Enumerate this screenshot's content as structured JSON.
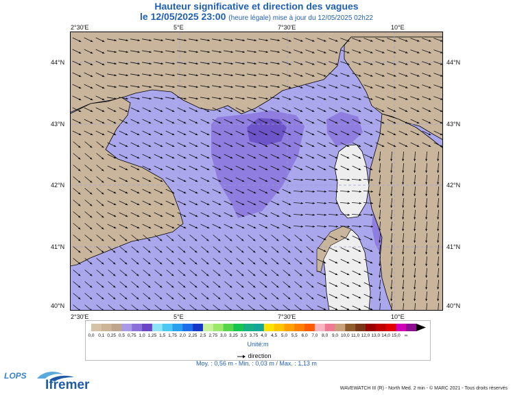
{
  "title": {
    "line1": "Hauteur significative et direction des vagues",
    "line2_main": "le 12/05/2025 23:00",
    "line2_small": "(heure légale) mise à jour du 12/05/2025 02h22"
  },
  "map": {
    "lon_labels": [
      "2°30'E",
      "5°E",
      "7°30'E",
      "10°E"
    ],
    "lat_labels": [
      "44°N",
      "43°N",
      "42°N",
      "41°N",
      "40°N"
    ],
    "colors": {
      "land": "#c8b59c",
      "sea_low": "#aaa7ec",
      "sea_mid": "#8f7ee0",
      "sea_high": "#6d55c9",
      "sea_peak": "#4f2fb1",
      "coast": "#000000",
      "arrow": "#111111",
      "grid": "#9aa0d8"
    }
  },
  "legend": {
    "ticks": [
      "0,0",
      "0,1",
      "0,25",
      "0,5",
      "0,75",
      "1,0",
      "1,25",
      "1,5",
      "1,75",
      "2,0",
      "2,25",
      "2,5",
      "2,75",
      "3,0",
      "3,25",
      "3,5",
      "3,75",
      "4,0",
      "4,5",
      "5,0",
      "5,5",
      "6,0",
      "7,0",
      "8,0",
      "9,0",
      "10,0",
      "11,0",
      "12,0",
      "13,0",
      "14,0",
      "15,0",
      "∞"
    ],
    "colors": [
      "#d6c2a7",
      "#ccb597",
      "#bfa58e",
      "#a89ae6",
      "#8b70dc",
      "#6a45c6",
      "#8ee4f6",
      "#4dc8f2",
      "#2a9ff0",
      "#1f6ee8",
      "#1737c9",
      "#c8f29a",
      "#9be86b",
      "#55d64a",
      "#16c44f",
      "#16b084",
      "#15a69a",
      "#ffe100",
      "#ffc400",
      "#ffa000",
      "#ff7e00",
      "#ff5a00",
      "#f7b6c2",
      "#ee7b92",
      "#c8a07a",
      "#8f5c2d",
      "#7a3518",
      "#9a0000",
      "#c00000",
      "#e00000",
      "#d000b8",
      "#8f0d8f"
    ],
    "unit": "Unité:m",
    "direction_label": "direction"
  },
  "stats": "Moy. : 0,56 m   -   Min. : 0,03 m / Max. : 1,13 m",
  "credit": "WAVEWATCH III (R) - North Med. 2 min - © MARC 2021 - Tous droits réservés",
  "logos": {
    "lops": "LOPS",
    "ifremer": "Ifremer"
  }
}
